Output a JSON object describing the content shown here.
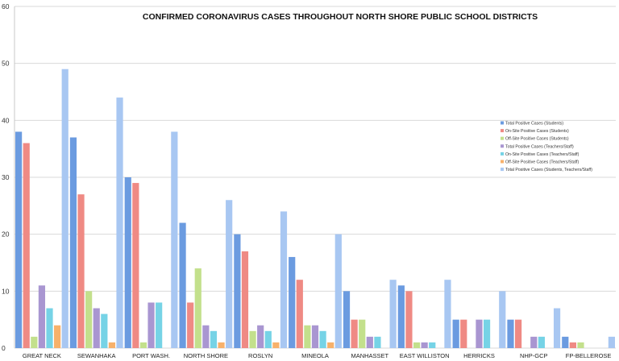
{
  "chart_data": {
    "type": "bar",
    "title": "CONFIRMED CORONAVIRUS CASES THROUGHOUT NORTH SHORE PUBLIC SCHOOL DISTRICTS",
    "xlabel": "",
    "ylabel": "",
    "ylim": [
      0,
      60
    ],
    "yticks": [
      0,
      10,
      20,
      30,
      40,
      50,
      60
    ],
    "grid": true,
    "legend_position": "right",
    "categories": [
      "GREAT NECK",
      "SEWANHAKA",
      "PORT WASH.",
      "NORTH SHORE",
      "ROSLYN",
      "MINEOLA",
      "MANHASSET",
      "EAST WILLISTON",
      "HERRICKS",
      "NHP-GCP",
      "FP-BELLEROSE"
    ],
    "series": [
      {
        "name": "Total Positive Cases (Students)",
        "color": "#6b9be0",
        "values": [
          38,
          37,
          30,
          22,
          20,
          16,
          10,
          11,
          5,
          5,
          2
        ]
      },
      {
        "name": "On-Site Positive Cases (Students)",
        "color": "#ef8a84",
        "values": [
          36,
          27,
          29,
          8,
          17,
          12,
          5,
          10,
          5,
          5,
          1
        ]
      },
      {
        "name": "Off-Site Positive Cases (Students)",
        "color": "#c3e08c",
        "values": [
          2,
          10,
          1,
          14,
          3,
          4,
          5,
          1,
          0,
          0,
          1
        ]
      },
      {
        "name": "Total Positive Cases (Teachers/Staff)",
        "color": "#a996d1",
        "values": [
          11,
          7,
          8,
          4,
          4,
          4,
          2,
          1,
          5,
          2,
          0
        ]
      },
      {
        "name": "On-Site Positive Cases (Teachers/Staff)",
        "color": "#76d3e6",
        "values": [
          7,
          6,
          8,
          3,
          3,
          3,
          2,
          1,
          5,
          2,
          0
        ]
      },
      {
        "name": "Off-Site Positive Cases (Teachers/Staff)",
        "color": "#f7b16b",
        "values": [
          4,
          1,
          0,
          1,
          1,
          1,
          0,
          0,
          0,
          0,
          0
        ]
      },
      {
        "name": "Total Positive Cases (Students, Teachers/Staff)",
        "color": "#a8c7f2",
        "values": [
          49,
          44,
          38,
          26,
          24,
          20,
          12,
          12,
          10,
          7,
          2
        ]
      }
    ]
  }
}
